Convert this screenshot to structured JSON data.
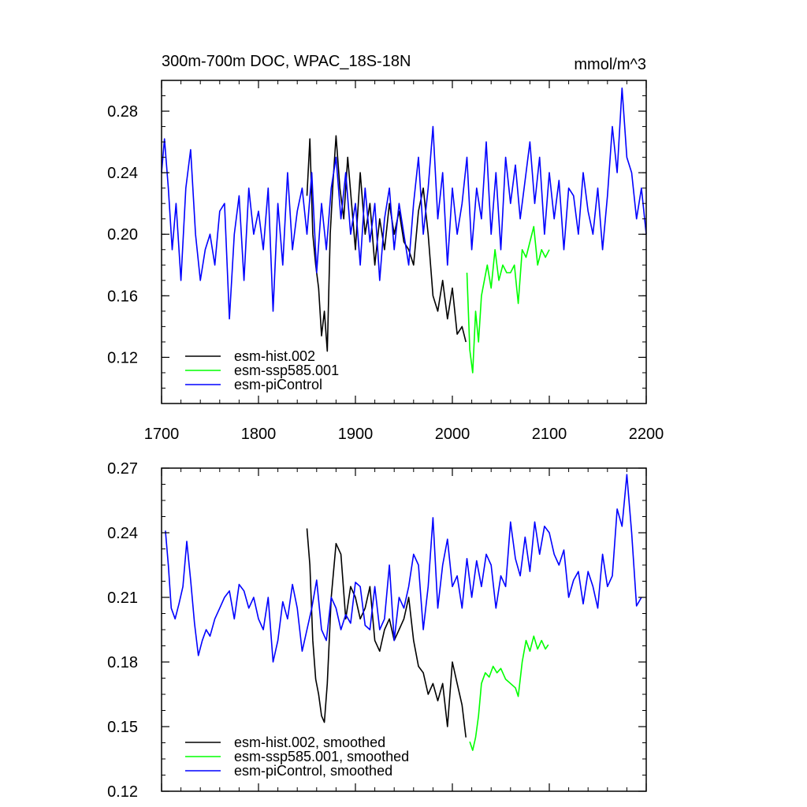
{
  "figure": {
    "title": "300m-700m DOC, WPAC_18S-18N",
    "units": "mmol/m^3"
  },
  "chart_data": [
    {
      "type": "line",
      "title": "300m-700m DOC, WPAC_18S-18N",
      "units": "mmol/m^3",
      "xlim": [
        1700,
        2200
      ],
      "ylim": [
        0.09,
        0.3
      ],
      "x_ticks": [
        1700,
        1800,
        1900,
        2000,
        2100,
        2200
      ],
      "x_tick_labels": [
        "1700",
        "1800",
        "1900",
        "2000",
        "2100",
        "2200"
      ],
      "y_ticks": [
        0.12,
        0.16,
        0.2,
        0.24,
        0.28
      ],
      "y_tick_labels": [
        "0.12",
        "0.16",
        "0.20",
        "0.24",
        "0.28"
      ],
      "legend_position": "bottom-left",
      "series": [
        {
          "name": "esm-hist.002",
          "color": "#000000",
          "x": [
            1850,
            1853,
            1856,
            1859,
            1862,
            1865,
            1868,
            1871,
            1874,
            1877,
            1880,
            1884,
            1888,
            1892,
            1896,
            1900,
            1905,
            1910,
            1915,
            1920,
            1925,
            1930,
            1935,
            1940,
            1945,
            1950,
            1955,
            1960,
            1965,
            1970,
            1975,
            1980,
            1985,
            1990,
            1995,
            2000,
            2005,
            2010,
            2014
          ],
          "values": [
            0.225,
            0.262,
            0.2,
            0.18,
            0.165,
            0.134,
            0.15,
            0.124,
            0.2,
            0.235,
            0.264,
            0.23,
            0.21,
            0.25,
            0.22,
            0.19,
            0.24,
            0.2,
            0.22,
            0.18,
            0.21,
            0.19,
            0.22,
            0.2,
            0.215,
            0.195,
            0.19,
            0.18,
            0.215,
            0.23,
            0.2,
            0.16,
            0.15,
            0.17,
            0.145,
            0.165,
            0.135,
            0.14,
            0.13
          ]
        },
        {
          "name": "esm-ssp585.001",
          "color": "#00ff00",
          "x": [
            2015,
            2018,
            2021,
            2024,
            2027,
            2030,
            2033,
            2036,
            2040,
            2044,
            2048,
            2052,
            2056,
            2060,
            2064,
            2068,
            2072,
            2076,
            2080,
            2084,
            2088,
            2092,
            2096,
            2100
          ],
          "values": [
            0.175,
            0.125,
            0.11,
            0.15,
            0.13,
            0.16,
            0.17,
            0.18,
            0.165,
            0.19,
            0.17,
            0.18,
            0.175,
            0.175,
            0.18,
            0.155,
            0.19,
            0.185,
            0.195,
            0.205,
            0.18,
            0.19,
            0.185,
            0.19
          ]
        },
        {
          "name": "esm-piControl",
          "color": "#0000ff",
          "x": [
            1700,
            1703,
            1707,
            1711,
            1715,
            1720,
            1725,
            1730,
            1735,
            1740,
            1745,
            1750,
            1755,
            1760,
            1765,
            1770,
            1775,
            1780,
            1785,
            1790,
            1795,
            1800,
            1805,
            1810,
            1815,
            1820,
            1825,
            1830,
            1835,
            1840,
            1845,
            1850,
            1855,
            1860,
            1865,
            1870,
            1875,
            1880,
            1885,
            1890,
            1895,
            1900,
            1905,
            1910,
            1915,
            1920,
            1925,
            1930,
            1935,
            1940,
            1945,
            1950,
            1955,
            1960,
            1965,
            1970,
            1975,
            1980,
            1985,
            1990,
            1995,
            2000,
            2005,
            2010,
            2015,
            2020,
            2025,
            2030,
            2035,
            2040,
            2045,
            2050,
            2055,
            2060,
            2065,
            2070,
            2075,
            2080,
            2085,
            2090,
            2095,
            2100,
            2105,
            2110,
            2115,
            2120,
            2125,
            2130,
            2135,
            2140,
            2145,
            2150,
            2155,
            2160,
            2165,
            2170,
            2175,
            2180,
            2185,
            2190,
            2195,
            2200
          ],
          "values": [
            0.24,
            0.262,
            0.23,
            0.19,
            0.22,
            0.17,
            0.23,
            0.255,
            0.2,
            0.17,
            0.19,
            0.2,
            0.18,
            0.215,
            0.22,
            0.145,
            0.2,
            0.225,
            0.17,
            0.23,
            0.2,
            0.215,
            0.19,
            0.23,
            0.15,
            0.22,
            0.18,
            0.24,
            0.19,
            0.215,
            0.23,
            0.2,
            0.24,
            0.175,
            0.22,
            0.19,
            0.23,
            0.25,
            0.21,
            0.24,
            0.2,
            0.22,
            0.18,
            0.23,
            0.195,
            0.22,
            0.17,
            0.21,
            0.23,
            0.19,
            0.22,
            0.2,
            0.18,
            0.22,
            0.25,
            0.2,
            0.23,
            0.27,
            0.21,
            0.24,
            0.18,
            0.23,
            0.2,
            0.22,
            0.25,
            0.19,
            0.23,
            0.21,
            0.26,
            0.2,
            0.24,
            0.19,
            0.25,
            0.22,
            0.245,
            0.21,
            0.235,
            0.26,
            0.22,
            0.25,
            0.2,
            0.24,
            0.21,
            0.235,
            0.19,
            0.23,
            0.225,
            0.2,
            0.24,
            0.215,
            0.2,
            0.23,
            0.19,
            0.225,
            0.27,
            0.24,
            0.295,
            0.25,
            0.24,
            0.21,
            0.23,
            0.2
          ]
        }
      ]
    },
    {
      "type": "line",
      "title": "",
      "xlim": [
        1700,
        2200
      ],
      "ylim": [
        0.12,
        0.27
      ],
      "x_ticks": [
        1700,
        1800,
        1900,
        2000,
        2100,
        2200
      ],
      "y_ticks": [
        0.12,
        0.15,
        0.18,
        0.21,
        0.24,
        0.27
      ],
      "y_tick_labels": [
        "0.12",
        "0.15",
        "0.18",
        "0.21",
        "0.24",
        "0.27"
      ],
      "legend_position": "bottom-left",
      "series": [
        {
          "name": "esm-hist.002, smoothed",
          "color": "#000000",
          "x": [
            1850,
            1853,
            1856,
            1859,
            1862,
            1865,
            1868,
            1871,
            1875,
            1880,
            1885,
            1890,
            1895,
            1900,
            1905,
            1910,
            1915,
            1920,
            1925,
            1930,
            1935,
            1940,
            1945,
            1950,
            1955,
            1960,
            1965,
            1970,
            1975,
            1980,
            1985,
            1990,
            1995,
            2000,
            2005,
            2010,
            2014
          ],
          "values": [
            0.242,
            0.225,
            0.19,
            0.172,
            0.165,
            0.155,
            0.152,
            0.17,
            0.21,
            0.235,
            0.23,
            0.2,
            0.215,
            0.21,
            0.2,
            0.205,
            0.215,
            0.19,
            0.185,
            0.195,
            0.2,
            0.19,
            0.195,
            0.2,
            0.21,
            0.19,
            0.178,
            0.175,
            0.165,
            0.17,
            0.162,
            0.17,
            0.15,
            0.18,
            0.17,
            0.16,
            0.145
          ]
        },
        {
          "name": "esm-ssp585.001, smoothed",
          "color": "#00ff00",
          "x": [
            2018,
            2021,
            2024,
            2027,
            2030,
            2034,
            2038,
            2042,
            2046,
            2050,
            2055,
            2060,
            2065,
            2068,
            2072,
            2076,
            2080,
            2084,
            2088,
            2092,
            2096,
            2099
          ],
          "values": [
            0.143,
            0.139,
            0.145,
            0.155,
            0.17,
            0.175,
            0.173,
            0.178,
            0.175,
            0.177,
            0.172,
            0.17,
            0.168,
            0.164,
            0.18,
            0.19,
            0.185,
            0.192,
            0.186,
            0.19,
            0.186,
            0.188
          ]
        },
        {
          "name": "esm-piControl, smoothed",
          "color": "#0000ff",
          "x": [
            1704,
            1707,
            1710,
            1714,
            1718,
            1722,
            1726,
            1730,
            1734,
            1738,
            1742,
            1746,
            1750,
            1755,
            1760,
            1765,
            1770,
            1775,
            1780,
            1785,
            1790,
            1795,
            1800,
            1805,
            1810,
            1815,
            1820,
            1825,
            1830,
            1835,
            1840,
            1845,
            1850,
            1855,
            1860,
            1865,
            1870,
            1875,
            1880,
            1885,
            1890,
            1895,
            1900,
            1905,
            1910,
            1915,
            1920,
            1925,
            1930,
            1935,
            1940,
            1945,
            1950,
            1955,
            1960,
            1965,
            1970,
            1975,
            1980,
            1985,
            1990,
            1995,
            2000,
            2005,
            2010,
            2015,
            2020,
            2025,
            2030,
            2035,
            2040,
            2045,
            2050,
            2055,
            2060,
            2065,
            2070,
            2075,
            2080,
            2085,
            2090,
            2095,
            2100,
            2105,
            2110,
            2115,
            2120,
            2125,
            2130,
            2135,
            2140,
            2145,
            2150,
            2155,
            2160,
            2165,
            2170,
            2175,
            2180,
            2185,
            2190,
            2195
          ],
          "values": [
            0.241,
            0.225,
            0.205,
            0.2,
            0.207,
            0.215,
            0.236,
            0.218,
            0.198,
            0.183,
            0.19,
            0.195,
            0.192,
            0.2,
            0.205,
            0.21,
            0.213,
            0.2,
            0.216,
            0.213,
            0.205,
            0.21,
            0.2,
            0.195,
            0.21,
            0.18,
            0.19,
            0.208,
            0.2,
            0.216,
            0.205,
            0.185,
            0.195,
            0.205,
            0.218,
            0.195,
            0.19,
            0.21,
            0.205,
            0.195,
            0.202,
            0.198,
            0.217,
            0.215,
            0.197,
            0.195,
            0.215,
            0.195,
            0.2,
            0.225,
            0.19,
            0.21,
            0.205,
            0.215,
            0.23,
            0.225,
            0.195,
            0.215,
            0.247,
            0.205,
            0.225,
            0.237,
            0.215,
            0.22,
            0.205,
            0.228,
            0.21,
            0.227,
            0.215,
            0.23,
            0.225,
            0.205,
            0.22,
            0.215,
            0.245,
            0.228,
            0.22,
            0.238,
            0.222,
            0.245,
            0.23,
            0.243,
            0.24,
            0.23,
            0.225,
            0.232,
            0.21,
            0.218,
            0.222,
            0.207,
            0.222,
            0.215,
            0.205,
            0.23,
            0.215,
            0.22,
            0.251,
            0.243,
            0.267,
            0.24,
            0.206,
            0.21
          ]
        }
      ]
    }
  ]
}
